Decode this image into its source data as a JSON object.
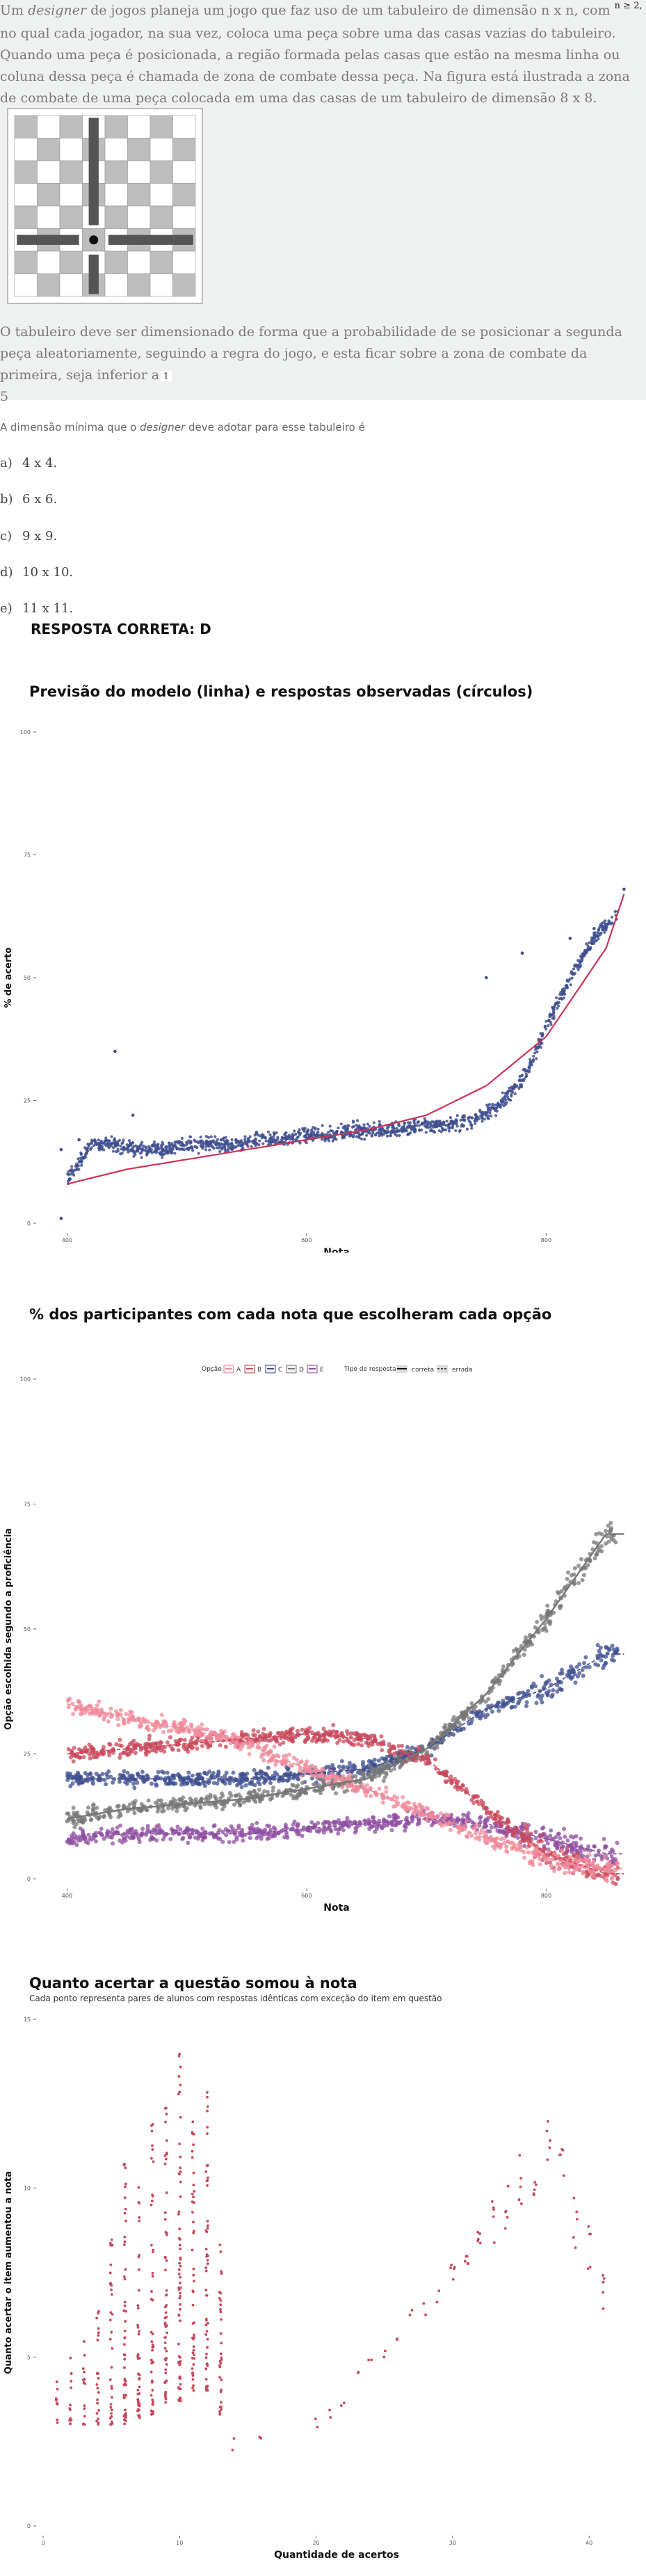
{
  "question": {
    "p1_before": "Um ",
    "p1_designer": "designer",
    "p1_mid": " de jogos planeja um jogo que faz uso de um tabuleiro de dimensão  n x n, com ",
    "p1_sup": "n ≥ 2,",
    "p1_after": " no qual cada jogador, na sua vez, coloca uma peça sobre uma das casas vazias do tabuleiro. Quando uma peça é posicionada, a região formada pelas casas que estão na mesma linha ou coluna dessa peça é chamada de zona de combate dessa peça. Na figura está ilustrada a zona de combate de uma peça colocada em uma das casas de um tabuleiro de dimensão 8 x 8.",
    "p2": "O tabuleiro deve ser dimensionado de forma que a probabilidade de se posicionar a segunda peça aleatoriamente, seguindo a regra do jogo, e esta ficar sobre a zona de combate da primeira, seja inferior a",
    "frac_num": "1",
    "frac_den": "5",
    "prompt_pre": "A dimensão mínima que o ",
    "prompt_designer": "designer",
    "prompt_post": " deve adotar para esse tabuleiro é",
    "options": [
      {
        "letter": "a)",
        "text": "4 x 4."
      },
      {
        "letter": "b)",
        "text": "6 x 6."
      },
      {
        "letter": "c)",
        "text": "9 x 9."
      },
      {
        "letter": "d)",
        "text": "10 x 10."
      },
      {
        "letter": "e)",
        "text": "11 x 11."
      }
    ],
    "answer": "RESPOSTA CORRETA: D",
    "board": {
      "size": 8,
      "piece_row": 5,
      "piece_col": 3
    }
  },
  "chart_data": [
    {
      "type": "scatter",
      "title": "Previsão do modelo (linha) e respostas observadas (círculos)",
      "xlabel": "Nota",
      "ylabel": "% de acerto",
      "xlim": [
        380,
        870
      ],
      "ylim": [
        0,
        100
      ],
      "xticks": [
        400,
        600,
        800
      ],
      "yticks": [
        0,
        25,
        50,
        75,
        100
      ],
      "series": [
        {
          "kind": "observed",
          "color": "#3f4f8f",
          "x": [
            400,
            420,
            440,
            460,
            480,
            500,
            520,
            540,
            560,
            580,
            600,
            620,
            640,
            660,
            680,
            700,
            720,
            740,
            760,
            780,
            800,
            820,
            840,
            860
          ],
          "y": [
            9,
            16,
            16,
            15,
            15,
            16,
            16,
            16,
            17,
            17,
            18,
            18,
            19,
            19,
            19,
            20,
            20,
            21,
            24,
            29,
            40,
            50,
            58,
            63
          ]
        },
        {
          "kind": "predicted",
          "color": "#cc3355",
          "x": [
            400,
            450,
            500,
            550,
            600,
            650,
            700,
            750,
            800,
            850,
            865
          ],
          "y": [
            8,
            11,
            13,
            15,
            17,
            19,
            22,
            28,
            38,
            56,
            67
          ]
        }
      ],
      "grid": false
    },
    {
      "type": "scatter",
      "title": "% dos participantes com cada nota que escolheram cada opção",
      "xlabel": "Nota",
      "ylabel": "Opção escolhida segundo a proficiência",
      "xlim": [
        380,
        870
      ],
      "ylim": [
        0,
        100
      ],
      "xticks": [
        400,
        600,
        800
      ],
      "yticks": [
        0,
        25,
        50,
        75,
        100
      ],
      "legend_title_options": "Opção",
      "legend_title_type": "Tipo de resposta",
      "legend_types": [
        "correta",
        "errada"
      ],
      "series": [
        {
          "name": "A",
          "color": "#ef8a9a",
          "x": [
            400,
            450,
            500,
            550,
            600,
            650,
            700,
            750,
            800,
            850
          ],
          "y": [
            35,
            32,
            30,
            27,
            22,
            18,
            13,
            8,
            4,
            2
          ]
        },
        {
          "name": "B",
          "color": "#c8485b",
          "x": [
            400,
            450,
            500,
            550,
            600,
            650,
            700,
            750,
            800,
            850
          ],
          "y": [
            25,
            26,
            27,
            28,
            29,
            28,
            24,
            14,
            5,
            1
          ]
        },
        {
          "name": "C",
          "color": "#3f4f8f",
          "x": [
            400,
            450,
            500,
            550,
            600,
            650,
            700,
            750,
            800,
            850
          ],
          "y": [
            20,
            20,
            20,
            20,
            21,
            22,
            26,
            34,
            38,
            45
          ]
        },
        {
          "name": "D",
          "color": "#777777",
          "x": [
            400,
            450,
            500,
            550,
            600,
            650,
            700,
            750,
            800,
            850
          ],
          "y": [
            12,
            14,
            15,
            16,
            18,
            20,
            26,
            37,
            52,
            69
          ]
        },
        {
          "name": "E",
          "color": "#8e4ea0",
          "x": [
            400,
            450,
            500,
            550,
            600,
            650,
            700,
            750,
            800,
            850
          ],
          "y": [
            8,
            9,
            9,
            9,
            10,
            11,
            12,
            11,
            8,
            5
          ]
        }
      ],
      "grid": false,
      "legend": "top"
    },
    {
      "type": "scatter",
      "title": "Quanto acertar a questão somou à nota",
      "subtitle": "Cada ponto representa pares de alunos com respostas idênticas com exceção do item em questão",
      "xlabel": "Quantidade de acertos",
      "ylabel": "Quanto acertar o item aumentou a nota",
      "xlim": [
        0,
        43
      ],
      "ylim": [
        0,
        15
      ],
      "xticks": [
        0,
        10,
        20,
        30,
        40
      ],
      "yticks": [
        0,
        5,
        10,
        15
      ],
      "color": "#c8485b",
      "columns": [
        {
          "x": 1,
          "min": 3.0,
          "max": 4.5
        },
        {
          "x": 2,
          "min": 3.0,
          "max": 5.0
        },
        {
          "x": 3,
          "min": 3.0,
          "max": 5.5
        },
        {
          "x": 4,
          "min": 3.0,
          "max": 6.5
        },
        {
          "x": 5,
          "min": 3.0,
          "max": 8.5
        },
        {
          "x": 6,
          "min": 3.0,
          "max": 11.0
        },
        {
          "x": 7,
          "min": 3.2,
          "max": 10.2
        },
        {
          "x": 8,
          "min": 3.3,
          "max": 12.0
        },
        {
          "x": 9,
          "min": 3.5,
          "max": 12.5
        },
        {
          "x": 10,
          "min": 3.7,
          "max": 14.5
        },
        {
          "x": 11,
          "min": 4.0,
          "max": 12.0
        },
        {
          "x": 12,
          "min": 4.0,
          "max": 13.0
        },
        {
          "x": 13,
          "min": 3.3,
          "max": 8.6
        }
      ],
      "points": [
        [
          14,
          2.4
        ],
        [
          16,
          2.7
        ],
        [
          20,
          3.0
        ],
        [
          21,
          3.4
        ],
        [
          22,
          3.8
        ],
        [
          23,
          4.4
        ],
        [
          24,
          4.8
        ],
        [
          25,
          5.0
        ],
        [
          26,
          5.6
        ],
        [
          27,
          6.2
        ],
        [
          28,
          6.5
        ],
        [
          29,
          6.8
        ],
        [
          30,
          7.5
        ],
        [
          31,
          8.0
        ],
        [
          32,
          8.6
        ],
        [
          33,
          9.0
        ],
        [
          34,
          9.4
        ],
        [
          35,
          10.2
        ],
        [
          36,
          10.6
        ],
        [
          37,
          11.2
        ],
        [
          38,
          10.4
        ],
        [
          39,
          9.0
        ],
        [
          40,
          8.2
        ],
        [
          41,
          7.0
        ]
      ]
    }
  ]
}
